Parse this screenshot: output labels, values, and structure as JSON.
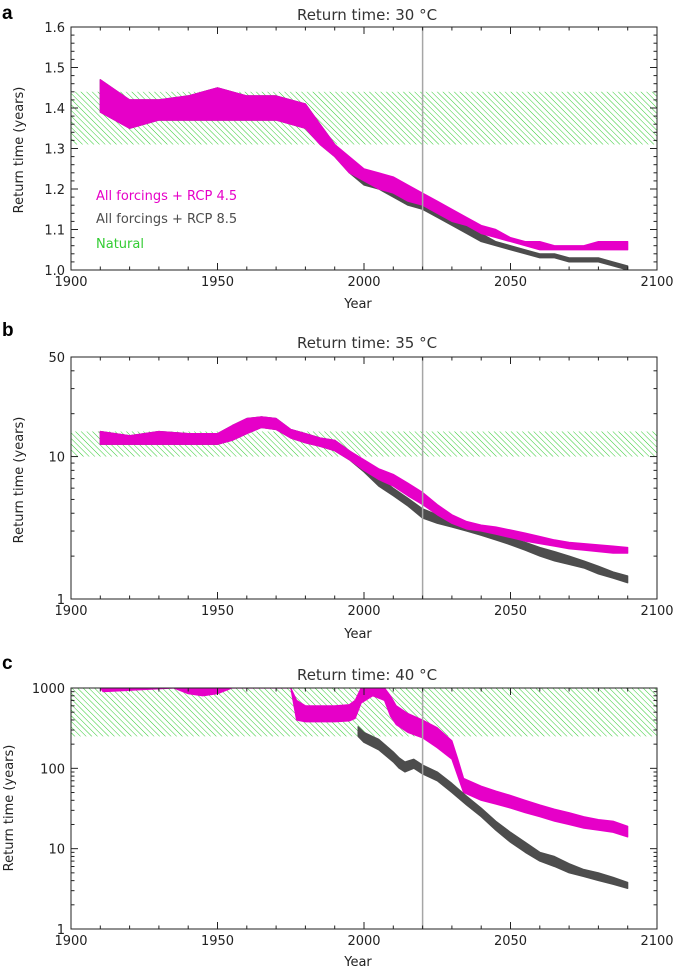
{
  "colors": {
    "rcp45": "#e600c8",
    "rcp85": "#4d4d4d",
    "natural": "#33cc33",
    "marker": "#a6a6a6"
  },
  "chart_data": [
    {
      "type": "area",
      "panel": "a",
      "title": "Return time: 30 °C",
      "xlabel": "Year",
      "ylabel": "Return time (years)",
      "xlim": [
        1900,
        2100
      ],
      "ylim": [
        1.0,
        1.6
      ],
      "yscale": "linear",
      "xticks": [
        "1900",
        "1950",
        "2000",
        "2050",
        "2100"
      ],
      "yticks": [
        "1.0",
        "1.1",
        "1.2",
        "1.3",
        "1.4",
        "1.5",
        "1.6"
      ],
      "ytick_values": [
        1.0,
        1.1,
        1.2,
        1.3,
        1.4,
        1.5,
        1.6
      ],
      "vline_year": 2020,
      "legend_position": "lower-left",
      "legend": [
        "All forcings + RCP 4.5",
        "All forcings + RCP 8.5",
        "Natural"
      ],
      "natural_band": [
        1.31,
        1.44
      ],
      "series": [
        {
          "name": "All forcings + RCP 8.5",
          "x": [
            1910,
            1920,
            1930,
            1940,
            1950,
            1960,
            1970,
            1975,
            1980,
            1985,
            1990,
            1995,
            2000,
            2005,
            2010,
            2015,
            2020,
            2025,
            2030,
            2035,
            2040,
            2045,
            2050,
            2055,
            2060,
            2065,
            2070,
            2075,
            2080,
            2085,
            2090
          ],
          "low": [
            1.39,
            1.35,
            1.37,
            1.37,
            1.37,
            1.37,
            1.37,
            1.36,
            1.35,
            1.31,
            1.28,
            1.24,
            1.21,
            1.2,
            1.18,
            1.16,
            1.15,
            1.13,
            1.11,
            1.09,
            1.07,
            1.06,
            1.05,
            1.04,
            1.03,
            1.03,
            1.02,
            1.02,
            1.02,
            1.01,
            1.0
          ],
          "high": [
            1.47,
            1.42,
            1.42,
            1.43,
            1.45,
            1.43,
            1.43,
            1.42,
            1.41,
            1.36,
            1.31,
            1.27,
            1.24,
            1.23,
            1.21,
            1.19,
            1.17,
            1.15,
            1.13,
            1.11,
            1.09,
            1.07,
            1.06,
            1.05,
            1.04,
            1.04,
            1.03,
            1.03,
            1.03,
            1.02,
            1.01
          ]
        },
        {
          "name": "All forcings + RCP 4.5",
          "x": [
            1910,
            1920,
            1930,
            1940,
            1950,
            1960,
            1970,
            1975,
            1980,
            1985,
            1990,
            1995,
            2000,
            2005,
            2010,
            2015,
            2020,
            2025,
            2030,
            2035,
            2040,
            2045,
            2050,
            2055,
            2060,
            2065,
            2070,
            2075,
            2080,
            2085,
            2090
          ],
          "low": [
            1.39,
            1.35,
            1.37,
            1.37,
            1.37,
            1.37,
            1.37,
            1.36,
            1.35,
            1.31,
            1.28,
            1.24,
            1.22,
            1.2,
            1.19,
            1.17,
            1.16,
            1.14,
            1.12,
            1.11,
            1.09,
            1.08,
            1.07,
            1.06,
            1.05,
            1.05,
            1.05,
            1.05,
            1.05,
            1.05,
            1.05
          ],
          "high": [
            1.47,
            1.42,
            1.42,
            1.43,
            1.45,
            1.43,
            1.43,
            1.42,
            1.41,
            1.36,
            1.31,
            1.28,
            1.25,
            1.24,
            1.23,
            1.21,
            1.19,
            1.17,
            1.15,
            1.13,
            1.11,
            1.1,
            1.08,
            1.07,
            1.07,
            1.06,
            1.06,
            1.06,
            1.07,
            1.07,
            1.07
          ]
        }
      ]
    },
    {
      "type": "area",
      "panel": "b",
      "title": "Return time: 35 °C",
      "xlabel": "Year",
      "ylabel": "Return time (years)",
      "xlim": [
        1900,
        2100
      ],
      "ylim": [
        1,
        50
      ],
      "yscale": "log",
      "xticks": [
        "1900",
        "1950",
        "2000",
        "2050",
        "2100"
      ],
      "yticks": [
        "1",
        "10",
        "50"
      ],
      "ytick_values": [
        1,
        10,
        50
      ],
      "vline_year": 2020,
      "natural_band": [
        10,
        15
      ],
      "series": [
        {
          "name": "All forcings + RCP 8.5",
          "x": [
            1910,
            1920,
            1930,
            1940,
            1950,
            1955,
            1960,
            1965,
            1970,
            1975,
            1980,
            1985,
            1990,
            1995,
            2000,
            2005,
            2010,
            2015,
            2020,
            2025,
            2030,
            2035,
            2040,
            2045,
            2050,
            2055,
            2060,
            2065,
            2070,
            2075,
            2080,
            2085,
            2090
          ],
          "low": [
            12.2,
            12.2,
            12.2,
            12.2,
            12.2,
            13.0,
            14.5,
            16.0,
            15.5,
            13.5,
            12.5,
            11.8,
            11.0,
            9.5,
            7.8,
            6.2,
            5.3,
            4.5,
            3.7,
            3.4,
            3.2,
            3.0,
            2.8,
            2.6,
            2.4,
            2.2,
            2.0,
            1.85,
            1.75,
            1.65,
            1.5,
            1.4,
            1.3
          ],
          "high": [
            15.0,
            14.0,
            15.0,
            14.5,
            14.5,
            16.5,
            18.5,
            19.0,
            18.5,
            15.5,
            14.5,
            13.5,
            13.0,
            11.0,
            9.2,
            7.2,
            6.0,
            5.1,
            4.3,
            3.9,
            3.6,
            3.4,
            3.2,
            3.0,
            2.7,
            2.5,
            2.3,
            2.15,
            2.0,
            1.85,
            1.7,
            1.55,
            1.45
          ]
        },
        {
          "name": "All forcings + RCP 4.5",
          "x": [
            1910,
            1920,
            1930,
            1940,
            1950,
            1955,
            1960,
            1965,
            1970,
            1975,
            1980,
            1985,
            1990,
            1995,
            2000,
            2005,
            2010,
            2015,
            2020,
            2025,
            2030,
            2035,
            2040,
            2045,
            2050,
            2055,
            2060,
            2065,
            2070,
            2075,
            2080,
            2085,
            2090
          ],
          "low": [
            12.2,
            12.2,
            12.2,
            12.2,
            12.2,
            13.0,
            14.5,
            16.0,
            15.5,
            13.5,
            12.5,
            11.8,
            11.0,
            9.5,
            8.0,
            6.9,
            6.2,
            5.3,
            4.6,
            3.9,
            3.4,
            3.1,
            3.0,
            2.85,
            2.7,
            2.55,
            2.45,
            2.35,
            2.25,
            2.2,
            2.15,
            2.1,
            2.1
          ],
          "high": [
            15.0,
            14.0,
            15.0,
            14.5,
            14.5,
            16.5,
            18.5,
            19.0,
            18.5,
            15.5,
            14.5,
            13.5,
            13.0,
            11.0,
            9.5,
            8.2,
            7.5,
            6.5,
            5.6,
            4.6,
            3.9,
            3.5,
            3.3,
            3.2,
            3.05,
            2.9,
            2.75,
            2.6,
            2.5,
            2.45,
            2.4,
            2.35,
            2.3
          ]
        }
      ]
    },
    {
      "type": "area",
      "panel": "c",
      "title": "Return time: 40 °C",
      "xlabel": "Year",
      "ylabel": "Return time (years)",
      "xlim": [
        1900,
        2100
      ],
      "ylim": [
        1,
        1000
      ],
      "yscale": "log",
      "xticks": [
        "1900",
        "1950",
        "2000",
        "2050",
        "2100"
      ],
      "yticks": [
        "1",
        "10",
        "100",
        "1000"
      ],
      "ytick_values": [
        1,
        10,
        100,
        1000
      ],
      "vline_year": 2020,
      "natural_band": [
        250,
        1000
      ],
      "series": [
        {
          "name": "All forcings + RCP 4.5",
          "x": [
            1910,
            1911,
            1935,
            1940,
            1945,
            1950,
            1955,
            1975,
            1977,
            1980,
            1985,
            1990,
            1995,
            1997,
            1999,
            2003,
            2007,
            2009,
            2011,
            2015,
            2020,
            2025,
            2030,
            2032,
            2034,
            2040,
            2045,
            2050,
            2055,
            2060,
            2065,
            2070,
            2075,
            2080,
            2085,
            2090
          ],
          "low": [
            1000,
            900,
            1000,
            850,
            800,
            850,
            1000,
            1000,
            400,
            380,
            380,
            380,
            390,
            420,
            650,
            800,
            700,
            450,
            350,
            280,
            240,
            180,
            130,
            80,
            50,
            40,
            36,
            32,
            28,
            25,
            22,
            20,
            18,
            17,
            16,
            14
          ],
          "high": [
            1000,
            1000,
            1000,
            1000,
            1000,
            1000,
            1000,
            1000,
            700,
            600,
            600,
            600,
            620,
            700,
            1000,
            1000,
            1000,
            800,
            600,
            480,
            400,
            320,
            220,
            130,
            75,
            60,
            52,
            46,
            40,
            35,
            31,
            28,
            25,
            23,
            22,
            19
          ]
        },
        {
          "name": "All forcings + RCP 8.5",
          "x": [
            1998,
            2000,
            2005,
            2010,
            2012,
            2014,
            2017,
            2020,
            2025,
            2030,
            2035,
            2040,
            2045,
            2050,
            2055,
            2060,
            2065,
            2070,
            2075,
            2080,
            2085,
            2090
          ],
          "low": [
            250,
            210,
            170,
            120,
            100,
            90,
            100,
            85,
            70,
            50,
            35,
            25,
            17,
            12,
            9,
            7,
            6,
            5,
            4.5,
            4,
            3.6,
            3.2
          ],
          "high": [
            330,
            280,
            230,
            160,
            135,
            120,
            130,
            110,
            90,
            65,
            45,
            32,
            22,
            16,
            12,
            9,
            8,
            6.5,
            5.5,
            5,
            4.4,
            3.8
          ]
        }
      ]
    }
  ]
}
